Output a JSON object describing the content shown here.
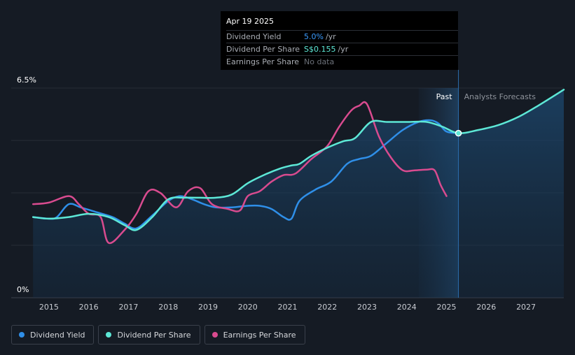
{
  "chart_data": {
    "type": "line",
    "title": "",
    "y_axis": {
      "top_label": "6.5%",
      "bottom_label": "0%",
      "ylim": [
        0,
        6.5
      ],
      "unit": "%"
    },
    "x_axis": {
      "ticks": [
        "2015",
        "2016",
        "2017",
        "2018",
        "2019",
        "2020",
        "2021",
        "2022",
        "2023",
        "2024",
        "2025",
        "2026",
        "2027"
      ],
      "xlim": [
        2014.05,
        2027.95
      ]
    },
    "regions": {
      "past_label": "Past",
      "forecast_label": "Analysts Forecasts",
      "past_start": 2024.3,
      "forecast_start": 2025.3
    },
    "series": [
      {
        "name": "Dividend Yield",
        "color": "#2f8fe8",
        "points": [
          [
            2014.6,
            2.5
          ],
          [
            2015.0,
            2.45
          ],
          [
            2015.2,
            2.5
          ],
          [
            2015.5,
            2.9
          ],
          [
            2015.8,
            2.8
          ],
          [
            2016.2,
            2.65
          ],
          [
            2016.6,
            2.5
          ],
          [
            2016.9,
            2.3
          ],
          [
            2017.2,
            2.15
          ],
          [
            2017.6,
            2.55
          ],
          [
            2018.0,
            3.0
          ],
          [
            2018.3,
            3.15
          ],
          [
            2018.6,
            3.05
          ],
          [
            2018.9,
            2.9
          ],
          [
            2019.2,
            2.8
          ],
          [
            2019.6,
            2.8
          ],
          [
            2020.0,
            2.85
          ],
          [
            2020.3,
            2.85
          ],
          [
            2020.6,
            2.75
          ],
          [
            2020.9,
            2.5
          ],
          [
            2021.1,
            2.45
          ],
          [
            2021.3,
            3.0
          ],
          [
            2021.7,
            3.35
          ],
          [
            2022.1,
            3.6
          ],
          [
            2022.5,
            4.15
          ],
          [
            2022.8,
            4.3
          ],
          [
            2023.1,
            4.4
          ],
          [
            2023.5,
            4.8
          ],
          [
            2023.9,
            5.2
          ],
          [
            2024.3,
            5.45
          ],
          [
            2024.6,
            5.5
          ],
          [
            2024.8,
            5.4
          ],
          [
            2025.0,
            5.15
          ],
          [
            2025.3,
            5.1
          ]
        ]
      },
      {
        "name": "Dividend Per Share",
        "color": "#5de8d6",
        "points": [
          [
            2014.6,
            2.5
          ],
          [
            2015.0,
            2.45
          ],
          [
            2015.5,
            2.5
          ],
          [
            2016.0,
            2.6
          ],
          [
            2016.5,
            2.5
          ],
          [
            2016.9,
            2.25
          ],
          [
            2017.2,
            2.1
          ],
          [
            2017.6,
            2.5
          ],
          [
            2018.0,
            3.05
          ],
          [
            2018.4,
            3.1
          ],
          [
            2018.8,
            3.1
          ],
          [
            2019.2,
            3.1
          ],
          [
            2019.6,
            3.2
          ],
          [
            2020.0,
            3.55
          ],
          [
            2020.4,
            3.8
          ],
          [
            2020.8,
            4.0
          ],
          [
            2021.1,
            4.1
          ],
          [
            2021.3,
            4.15
          ],
          [
            2021.6,
            4.4
          ],
          [
            2022.0,
            4.65
          ],
          [
            2022.4,
            4.85
          ],
          [
            2022.7,
            4.95
          ],
          [
            2023.1,
            5.45
          ],
          [
            2023.5,
            5.45
          ],
          [
            2024.0,
            5.45
          ],
          [
            2024.5,
            5.45
          ],
          [
            2024.9,
            5.3
          ],
          [
            2025.3,
            5.1
          ],
          [
            2025.8,
            5.2
          ],
          [
            2026.3,
            5.35
          ],
          [
            2026.8,
            5.6
          ],
          [
            2027.3,
            5.95
          ],
          [
            2027.95,
            6.45
          ]
        ]
      },
      {
        "name": "Earnings Per Share",
        "color": "#d94b8f",
        "points": [
          [
            2014.6,
            2.9
          ],
          [
            2015.0,
            2.95
          ],
          [
            2015.5,
            3.15
          ],
          [
            2015.75,
            2.9
          ],
          [
            2016.0,
            2.6
          ],
          [
            2016.3,
            2.5
          ],
          [
            2016.5,
            1.7
          ],
          [
            2016.9,
            2.1
          ],
          [
            2017.2,
            2.6
          ],
          [
            2017.5,
            3.3
          ],
          [
            2017.8,
            3.25
          ],
          [
            2018.2,
            2.8
          ],
          [
            2018.5,
            3.3
          ],
          [
            2018.8,
            3.4
          ],
          [
            2019.1,
            2.9
          ],
          [
            2019.5,
            2.75
          ],
          [
            2019.8,
            2.7
          ],
          [
            2020.0,
            3.15
          ],
          [
            2020.3,
            3.3
          ],
          [
            2020.6,
            3.6
          ],
          [
            2020.9,
            3.8
          ],
          [
            2021.2,
            3.85
          ],
          [
            2021.6,
            4.3
          ],
          [
            2022.0,
            4.7
          ],
          [
            2022.3,
            5.3
          ],
          [
            2022.6,
            5.8
          ],
          [
            2022.8,
            5.95
          ],
          [
            2023.0,
            6.0
          ],
          [
            2023.3,
            5.0
          ],
          [
            2023.6,
            4.35
          ],
          [
            2023.9,
            3.95
          ],
          [
            2024.2,
            3.95
          ],
          [
            2024.5,
            3.97
          ],
          [
            2024.7,
            3.95
          ],
          [
            2024.85,
            3.5
          ],
          [
            2025.0,
            3.15
          ]
        ]
      }
    ],
    "selected_point": {
      "x": 2025.3,
      "series": "Dividend Per Share"
    }
  },
  "tooltip": {
    "date": "Apr 19 2025",
    "rows": [
      {
        "label": "Dividend Yield",
        "value": "5.0%",
        "unit": "/yr",
        "color": "#3b9cff"
      },
      {
        "label": "Dividend Per Share",
        "value": "S$0.155",
        "unit": "/yr",
        "color": "#5de8d6"
      },
      {
        "label": "Earnings Per Share",
        "value": "No data",
        "unit": "",
        "color": "#6b7079"
      }
    ]
  },
  "legend": [
    {
      "label": "Dividend Yield",
      "color": "#2f8fe8"
    },
    {
      "label": "Dividend Per Share",
      "color": "#5de8d6"
    },
    {
      "label": "Earnings Per Share",
      "color": "#d94b8f"
    }
  ]
}
